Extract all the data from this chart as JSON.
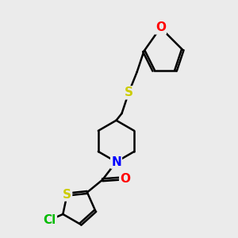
{
  "background_color": "#ebebeb",
  "atom_colors": {
    "C": "#000000",
    "N": "#0000ff",
    "O": "#ff0000",
    "S": "#cccc00",
    "Cl": "#00bb00"
  },
  "bond_color": "#000000",
  "bond_width": 1.8,
  "figsize": [
    3.0,
    3.0
  ],
  "dpi": 100,
  "font_size_atom": 11
}
